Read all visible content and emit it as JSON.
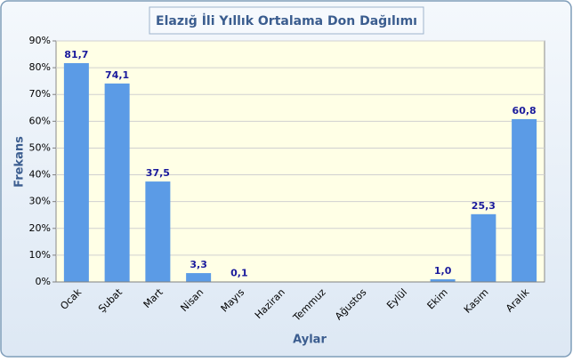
{
  "chart_data": {
    "type": "bar",
    "title": "Elazığ İli Yıllık Ortalama Don Dağılımı",
    "x_label": "Aylar",
    "y_label": "Frekans",
    "categories": [
      "Ocak",
      "Şubat",
      "Mart",
      "Nisan",
      "Mayıs",
      "Haziran",
      "Temmuz",
      "Ağustos",
      "Eylül",
      "Ekim",
      "Kasım",
      "Aralık"
    ],
    "values": [
      81.7,
      74.1,
      37.5,
      3.3,
      0.1,
      null,
      null,
      null,
      null,
      1.0,
      25.3,
      60.8
    ],
    "value_labels": [
      "81,7",
      "74,1",
      "37,5",
      "3,3",
      "0,1",
      null,
      null,
      null,
      null,
      "1,0",
      "25,3",
      "60,8"
    ],
    "color": "#5b9be6",
    "ylim": [
      0,
      90
    ],
    "yticks": [
      {
        "value": 0,
        "label": "0%"
      },
      {
        "value": 10,
        "label": "10%"
      },
      {
        "value": 20,
        "label": "20%"
      },
      {
        "value": 30,
        "label": "30%"
      },
      {
        "value": 40,
        "label": "40%"
      },
      {
        "value": 50,
        "label": "50%"
      },
      {
        "value": 60,
        "label": "60%"
      },
      {
        "value": 70,
        "label": "70%"
      },
      {
        "value": 80,
        "label": "80%"
      },
      {
        "value": 90,
        "label": "90%"
      }
    ],
    "grid": true
  }
}
